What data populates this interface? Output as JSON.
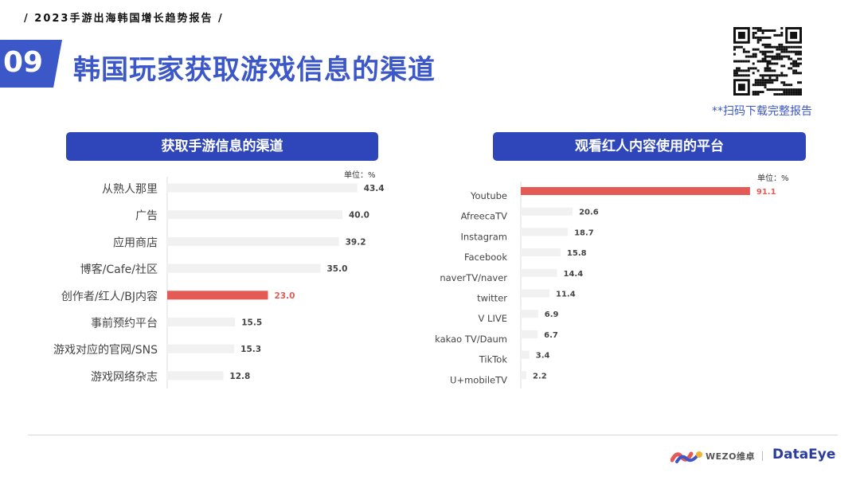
{
  "header": {
    "report_line": "/  2023手游出海韩国增长趋势报告  /",
    "page_number": "09",
    "title": "韩国玩家获取游戏信息的渠道"
  },
  "qr": {
    "caption": "**扫码下载完整报告"
  },
  "colors": {
    "brand_blue": "#3b57c8",
    "panel_blue": "#2f46bb",
    "highlight_red": "#e45a55",
    "bar_gray": "#f1f1f1"
  },
  "chart_data": [
    {
      "type": "bar",
      "orientation": "horizontal",
      "title": "获取手游信息的渠道",
      "unit_label": "单位：%",
      "categories": [
        "从熟人那里",
        "广告",
        "应用商店",
        "博客/Cafe/社区",
        "创作者/红人/BJ内容",
        "事前预约平台",
        "游戏对应的官网/SNS",
        "游戏网络杂志"
      ],
      "values": [
        43.4,
        40.0,
        39.2,
        35.0,
        23.0,
        15.5,
        15.3,
        12.8
      ],
      "labels": [
        "43.4",
        "40.0",
        "39.2",
        "35.0",
        "23.0",
        "15.5",
        "15.3",
        "12.8"
      ],
      "highlight": "创作者/红人/BJ内容",
      "xlim": [
        0,
        50
      ]
    },
    {
      "type": "bar",
      "orientation": "horizontal",
      "title": "观看红人内容使用的平台",
      "unit_label": "单位：%",
      "categories": [
        "Youtube",
        "AfreecaTV",
        "Instagram",
        "Facebook",
        "naverTV/naver",
        "twitter",
        "V LIVE",
        "kakao TV/Daum",
        "TikTok",
        "U+mobileTV"
      ],
      "values": [
        91.1,
        20.6,
        18.7,
        15.8,
        14.4,
        11.4,
        6.9,
        6.7,
        3.4,
        2.2
      ],
      "labels": [
        "91.1",
        "20.6",
        "18.7",
        "15.8",
        "14.4",
        "11.4",
        "6.9",
        "6.7",
        "3.4",
        "2.2"
      ],
      "highlight": "Youtube",
      "xlim": [
        0,
        100
      ]
    }
  ],
  "footer": {
    "wezo_text": "WEZO维卓",
    "dataeye_text": "DataEye"
  }
}
